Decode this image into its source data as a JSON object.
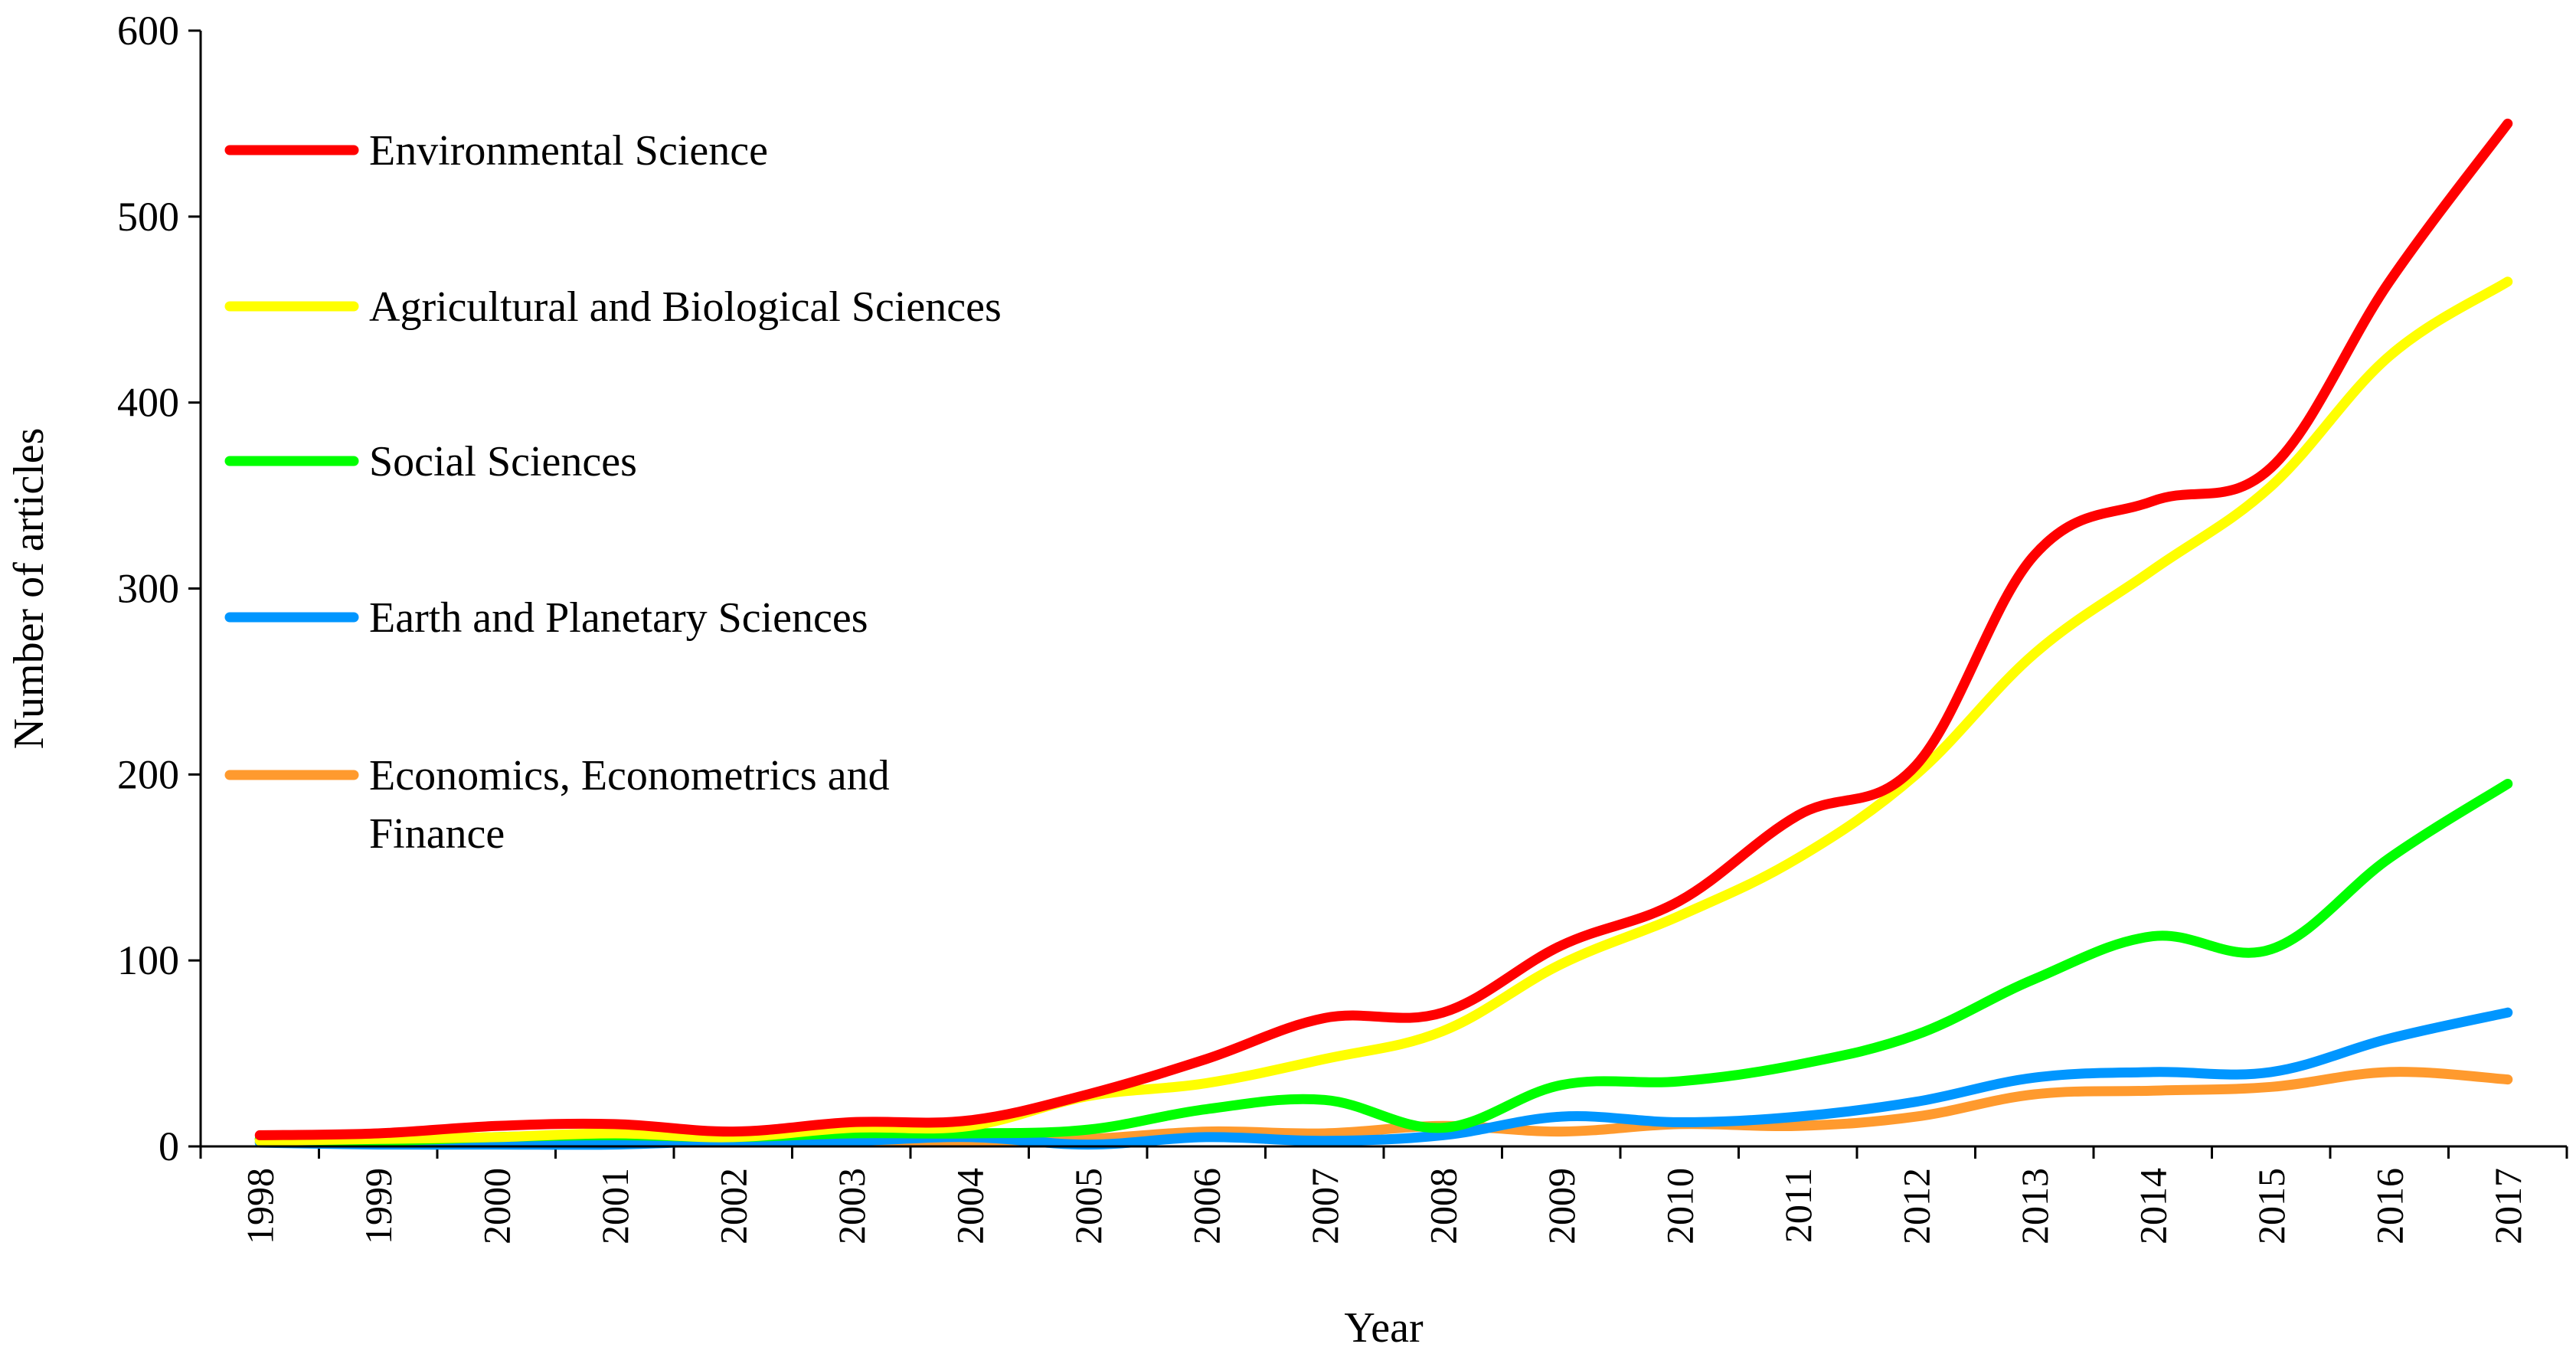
{
  "chart_data": {
    "type": "line",
    "title": "",
    "xlabel": "Year",
    "ylabel": "Number of articles",
    "ylim": [
      0,
      600
    ],
    "yticks": [
      0,
      100,
      200,
      300,
      400,
      500,
      600
    ],
    "grid": false,
    "legend_position": "top-left",
    "categories": [
      "1998",
      "1999",
      "2000",
      "2001",
      "2002",
      "2003",
      "2004",
      "2005",
      "2006",
      "2007",
      "2008",
      "2009",
      "2010",
      "2011",
      "2012",
      "2013",
      "2014",
      "2015",
      "2016",
      "2017"
    ],
    "series": [
      {
        "name": "Environmental Science",
        "color": "#ff0000",
        "values": [
          6,
          7,
          11,
          12,
          8,
          13,
          14,
          28,
          47,
          69,
          72,
          108,
          132,
          178,
          205,
          318,
          347,
          365,
          465,
          550
        ]
      },
      {
        "name": "Agricultural and Biological Sciences",
        "color": "#ffff00",
        "values": [
          3,
          4,
          5,
          7,
          5,
          10,
          11,
          27,
          34,
          47,
          62,
          98,
          124,
          155,
          200,
          265,
          310,
          355,
          425,
          465
        ]
      },
      {
        "name": "Social Sciences",
        "color": "#00ff00",
        "values": [
          4,
          3,
          5,
          6,
          5,
          7,
          7,
          9,
          20,
          25,
          10,
          33,
          35,
          44,
          60,
          90,
          113,
          106,
          155,
          195
        ]
      },
      {
        "name": "Earth and Planetary Sciences",
        "color": "#0096ff",
        "values": [
          2,
          1,
          1,
          1,
          3,
          3,
          5,
          1,
          5,
          3,
          6,
          16,
          13,
          16,
          24,
          37,
          40,
          40,
          58,
          72
        ]
      },
      {
        "name": "Economics, Econometrics and Finance",
        "color": "#ff9a2e",
        "values": [
          4,
          2,
          2,
          4,
          3,
          3,
          3,
          4,
          8,
          7,
          11,
          8,
          12,
          11,
          16,
          28,
          30,
          32,
          40,
          36
        ]
      }
    ]
  }
}
